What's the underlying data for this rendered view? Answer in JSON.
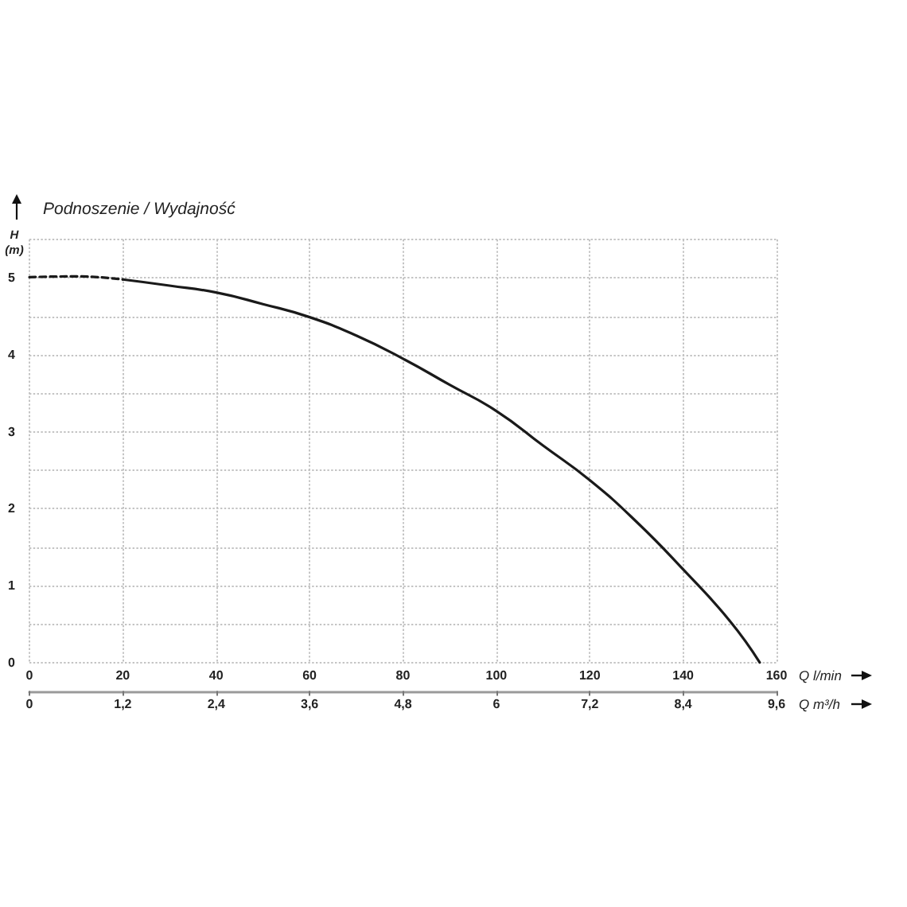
{
  "chart_data": {
    "type": "line",
    "title": "Podnoszenie / Wydajność",
    "xlabel": "Q l/min",
    "x2label": "Q m³/h",
    "ylabel": "H (m)",
    "xlim": [
      0,
      160
    ],
    "xticks": [
      0,
      20,
      40,
      60,
      80,
      100,
      120,
      140,
      160
    ],
    "x2lim": [
      0,
      9.6
    ],
    "x2ticks": [
      0,
      {
        "value": 1.2,
        "label": "1,2"
      },
      {
        "value": 2.4,
        "label": "2,4"
      },
      {
        "value": 3.6,
        "label": "3,6"
      },
      {
        "value": 4.8,
        "label": "4,8"
      },
      6,
      {
        "value": 7.2,
        "label": "7,2"
      },
      {
        "value": 8.4,
        "label": "8,4"
      },
      {
        "value": 9.6,
        "label": "9,6"
      }
    ],
    "ylim": [
      0,
      5.5
    ],
    "yticks": [
      0,
      {
        "value": 0.5,
        "label": null
      },
      1,
      {
        "value": 1.5,
        "label": null
      },
      2,
      {
        "value": 2.5,
        "label": null
      },
      3,
      {
        "value": 3.5,
        "label": null
      },
      4,
      {
        "value": 4.5,
        "label": null
      },
      5,
      {
        "value": 5.5,
        "label": null
      }
    ],
    "grid": true,
    "marker": "none",
    "series": [
      {
        "color": "#1a1a1a",
        "line_style": "dashed",
        "x": [
          0,
          10,
          20
        ],
        "values": [
          5.01,
          5.02,
          4.98
        ]
      },
      {
        "color": "#1a1a1a",
        "line_style": "solid",
        "x": [
          20,
          30,
          40,
          50,
          60,
          70,
          80,
          90,
          100,
          110,
          120,
          130,
          140,
          150,
          156.4
        ],
        "values": [
          4.98,
          4.9,
          4.81,
          4.66,
          4.49,
          4.25,
          3.95,
          3.61,
          3.27,
          2.82,
          2.37,
          1.83,
          1.21,
          0.54,
          0
        ]
      }
    ]
  }
}
